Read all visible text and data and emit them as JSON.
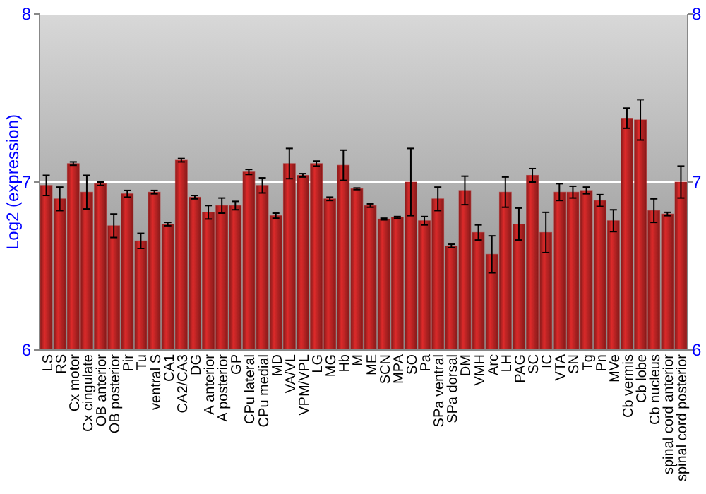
{
  "chart_data": {
    "type": "bar",
    "ylabel": "Log2 (expression)",
    "categories": [
      "LS",
      "RS",
      "Cx motor",
      "Cx cingulate",
      "OB anterior",
      "OB posterior",
      "Pir",
      "Tu",
      "ventral S",
      "CA1",
      "CA2/CA3",
      "DG",
      "A anterior",
      "A posterior",
      "GP",
      "CPu lateral",
      "CPu medial",
      "MD",
      "VA/VL",
      "VPM/VPL",
      "LG",
      "MG",
      "Hb",
      "M",
      "ME",
      "SCN",
      "MPA",
      "SO",
      "Pa",
      "SPa ventral",
      "SPa dorsal",
      "DM",
      "VMH",
      "Arc",
      "LH",
      "PAG",
      "SC",
      "IC",
      "VTA",
      "SN",
      "Tg",
      "Pn",
      "MVe",
      "Cb vermis",
      "Cb lobe",
      "Cb nucleus",
      "spinal cord anterior",
      "spinal cord posterior"
    ],
    "values": [
      6.98,
      6.9,
      7.11,
      6.94,
      6.99,
      6.74,
      6.93,
      6.65,
      6.94,
      6.75,
      7.13,
      6.91,
      6.82,
      6.86,
      6.86,
      7.06,
      6.98,
      6.8,
      7.11,
      7.04,
      7.11,
      6.9,
      7.1,
      6.96,
      6.86,
      6.78,
      6.79,
      7.0,
      6.77,
      6.9,
      6.62,
      6.95,
      6.7,
      6.57,
      6.94,
      6.75,
      7.04,
      6.7,
      6.94,
      6.94,
      6.95,
      6.89,
      6.77,
      7.38,
      7.37,
      6.83,
      6.81,
      7.0
    ],
    "errors": [
      0.06,
      0.07,
      0.01,
      0.1,
      0.01,
      0.07,
      0.02,
      0.045,
      0.01,
      0.01,
      0.01,
      0.01,
      0.04,
      0.045,
      0.025,
      0.015,
      0.045,
      0.015,
      0.09,
      0.01,
      0.015,
      0.01,
      0.09,
      0.005,
      0.01,
      0.005,
      0.005,
      0.2,
      0.025,
      0.07,
      0.01,
      0.085,
      0.045,
      0.11,
      0.09,
      0.095,
      0.04,
      0.12,
      0.05,
      0.035,
      0.02,
      0.035,
      0.065,
      0.06,
      0.12,
      0.07,
      0.01,
      0.095
    ],
    "color": "#b22222",
    "ylim": [
      6,
      8
    ],
    "yticks": [
      6,
      7,
      8
    ],
    "y2lim": [
      6,
      8
    ],
    "y2ticks": [
      6,
      7,
      8
    ],
    "grid": "y"
  }
}
